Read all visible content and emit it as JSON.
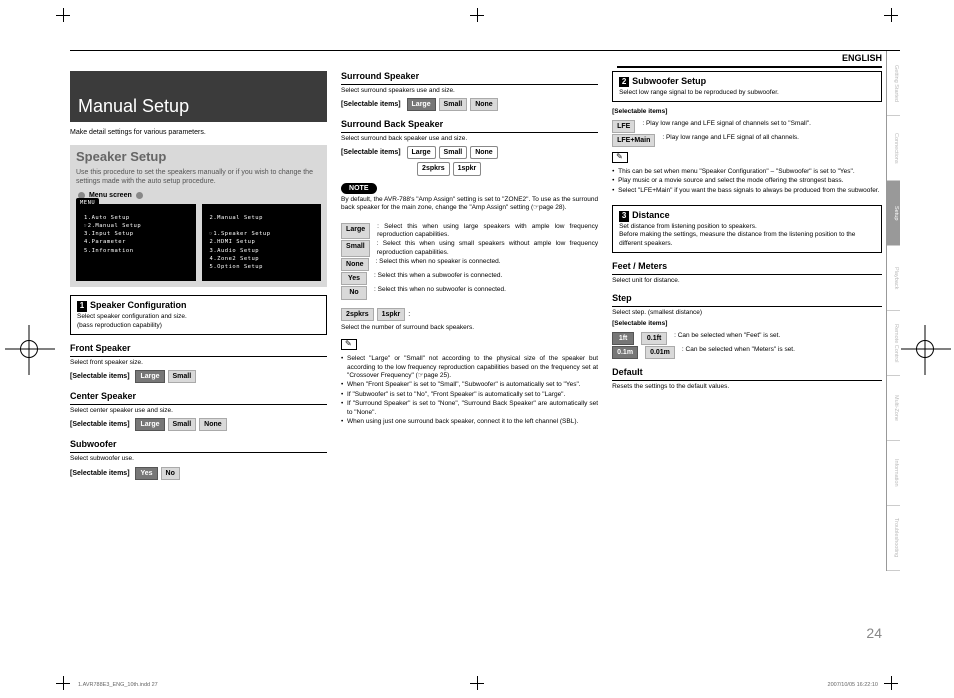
{
  "language": "ENGLISH",
  "page_number": "24",
  "indd_file": "1.AVR788E3_ENG_10th.indd   27",
  "indd_timestamp": "2007/10/05   16:22:10",
  "title": "Manual Setup",
  "intro": "Make detail settings for various parameters.",
  "speaker_setup": {
    "heading": "Speaker Setup",
    "text": "Use this procedure to set the speakers manually or if you wish to change the settings made with the auto setup procedure.",
    "menu_screen_label": "Menu screen",
    "menu_tag": "MENU",
    "menu_left": "1.Auto Setup\n☞2.Manual Setup\n3.Input Setup\n4.Parameter\n5.Information",
    "menu_right": "2.Manual Setup\n\n☞1.Speaker Setup\n2.HDMI Setup\n3.Audio Setup\n4.Zone2 Setup\n5.Option Setup"
  },
  "sec1": {
    "num": "1",
    "title": "Speaker Configuration",
    "sub1": "Select speaker configuration and size.",
    "sub2": "(bass reproduction capability)"
  },
  "front": {
    "h": "Front Speaker",
    "p": "Select front speaker size.",
    "label": "[Selectable items]",
    "opts": [
      "Large",
      "Small"
    ]
  },
  "center": {
    "h": "Center Speaker",
    "p": "Select center speaker use and size.",
    "label": "[Selectable items]",
    "opts": [
      "Large",
      "Small",
      "None"
    ]
  },
  "sub": {
    "h": "Subwoofer",
    "p": "Select subwoofer use.",
    "label": "[Selectable items]",
    "opts": [
      "Yes",
      "No"
    ]
  },
  "surround": {
    "h": "Surround Speaker",
    "p": "Select surround speakers use and size.",
    "label": "[Selectable items]",
    "opts": [
      "Large",
      "Small",
      "None"
    ]
  },
  "sback": {
    "h": "Surround Back Speaker",
    "p": "Select surround back speaker use and size.",
    "label": "[Selectable items]",
    "opts1": [
      "Large",
      "Small",
      "None"
    ],
    "opts2": [
      "2spkrs",
      "1spkr"
    ]
  },
  "note": {
    "label": "NOTE",
    "text": "By default, the AVR-788's \"Amp Assign\" setting is set to \"ZONE2\". To use as the surround back speaker for the main zone, change the \"Amp Assign\" setting (☞page 28)."
  },
  "defs": {
    "Large": ": Select this when using large speakers with ample low frequency reproduction capabilities.",
    "Small": ": Select this when using small speakers without ample low frequency reproduction capabilities.",
    "None": ": Select this when no speaker is connected.",
    "Yes": ": Select this when a subwoofer is connected.",
    "No": ": Select this when no subwoofer is connected."
  },
  "spkrs_line": {
    "pills": [
      "2spkrs",
      "1spkr"
    ],
    "text": ":"
  },
  "spkrs_caption": "Select the number of surround back speakers.",
  "tips": [
    "Select \"Large\" or \"Small\" not according to the physical size of the speaker but according to the low frequency reproduction capabilities based on the frequency set at \"Crossover Frequency\" (☞page 25).",
    "When \"Front Speaker\" is set to \"Small\", \"Subwoofer\" is automatically set to \"Yes\".",
    "If \"Subwoofer\" is set to \"No\", \"Front Speaker\" is automatically set to \"Large\".",
    "If \"Surround Speaker\" is set to \"None\", \"Surround Back Speaker\" are automatically set to \"None\".",
    "When using just one surround back speaker, connect it to the left channel (SBL)."
  ],
  "sec2": {
    "num": "2",
    "title": "Subwoofer Setup",
    "sub": "Select low range signal to be reproduced by subwoofer.",
    "items_label": "[Selectable items]",
    "lfe": {
      "pill": "LFE",
      "text": ": Play low range and LFE signal of channels set to \"Small\"."
    },
    "lfemain": {
      "pill": "LFE+Main",
      "text": ": Play low range and LFE signal of all channels."
    },
    "tips": [
      "This can be set when menu \"Speaker Configuration\" – \"Subwoofer\" is set to \"Yes\".",
      "Play music or a movie source and select the mode offering the strongest bass.",
      "Select \"LFE+Main\" if you want the bass signals to always be produced from the subwoofer."
    ]
  },
  "sec3": {
    "num": "3",
    "title": "Distance",
    "sub1": "Set distance from listening position to speakers.",
    "sub2": "Before making the settings, measure the distance from the listening position to the different speakers."
  },
  "feet": {
    "h": "Feet / Meters",
    "p": "Select unit for distance."
  },
  "step": {
    "h": "Step",
    "p": "Select step. (smallest distance)",
    "items_label": "[Selectable items]",
    "row1": {
      "pills": [
        "1ft",
        "0.1ft"
      ],
      "text": ": Can be selected when \"Feet\" is set."
    },
    "row2": {
      "pills": [
        "0.1m",
        "0.01m"
      ],
      "text": ": Can be selected when \"Meters\" is set."
    }
  },
  "default": {
    "h": "Default",
    "p": "Resets the settings to the default values."
  },
  "tabs": [
    "Getting Started",
    "Connections",
    "Setup",
    "Playback",
    "Remote Control",
    "Multi-Zone",
    "Information",
    "Troubleshooting"
  ],
  "tabs_active_index": 2
}
